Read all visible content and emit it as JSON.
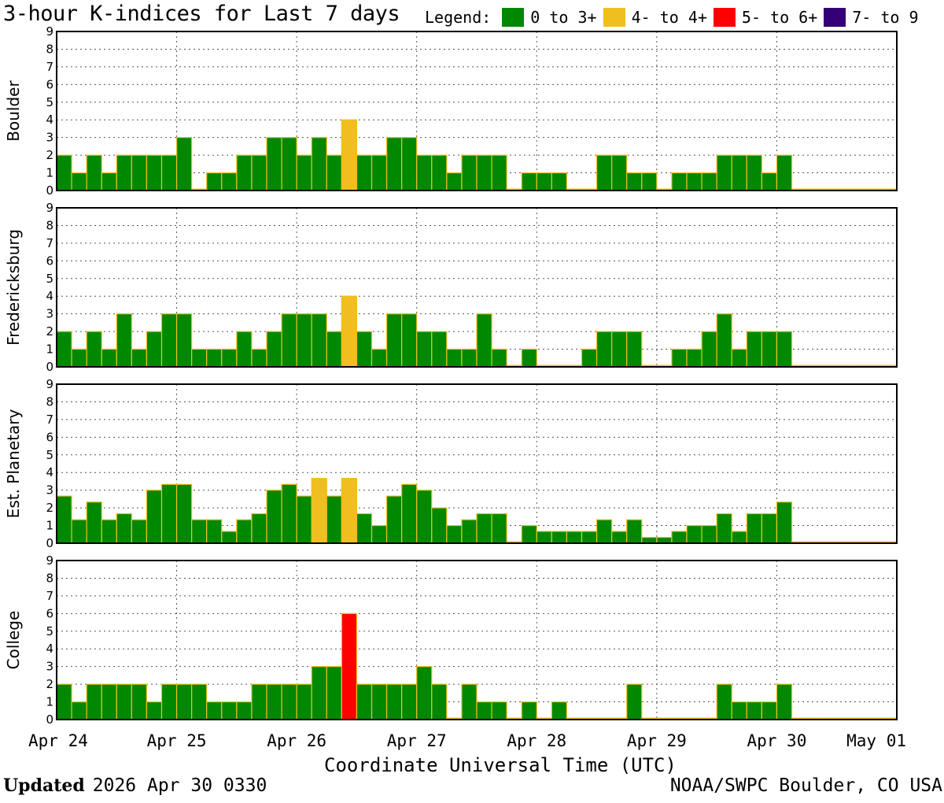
{
  "title": "3-hour K-indices for Last 7 days",
  "legend": {
    "label": "Legend:",
    "items": [
      {
        "label": "0 to 3+",
        "color": "#008800"
      },
      {
        "label": "4- to 4+",
        "color": "#f0be1e"
      },
      {
        "label": "5- to 6+",
        "color": "#ff0000"
      },
      {
        "label": "7- to 9",
        "color": "#330077"
      }
    ]
  },
  "footer": {
    "updated_label": "Updated",
    "updated_value": "2026 Apr 30 0330",
    "source": "NOAA/SWPC Boulder, CO USA"
  },
  "chart_data": {
    "type": "bar",
    "xlabel": "Coordinate Universal Time (UTC)",
    "x_ticks": [
      "Apr 24",
      "Apr 25",
      "Apr 26",
      "Apr 27",
      "Apr 28",
      "Apr 29",
      "Apr 30",
      "May 01"
    ],
    "ylim": [
      0,
      9
    ],
    "y_ticks": [
      0,
      1,
      2,
      3,
      4,
      5,
      6,
      7,
      8,
      9
    ],
    "grid": true,
    "legend_position": "top-right",
    "panels": [
      {
        "name": "Boulder",
        "values": [
          2,
          1,
          2,
          1,
          2,
          2,
          2,
          2,
          3,
          0,
          1,
          1,
          2,
          2,
          3,
          3,
          2,
          3,
          2,
          4,
          2,
          2,
          3,
          3,
          2,
          2,
          1,
          2,
          2,
          2,
          0,
          1,
          1,
          1,
          0,
          0,
          2,
          2,
          1,
          1,
          0,
          1,
          1,
          1,
          2,
          2,
          2,
          1,
          2,
          0,
          0,
          0,
          0,
          0,
          0,
          0
        ]
      },
      {
        "name": "Fredericksburg",
        "values": [
          2,
          1,
          2,
          1,
          3,
          1,
          2,
          3,
          3,
          1,
          1,
          1,
          2,
          1,
          2,
          3,
          3,
          3,
          2,
          4,
          2,
          1,
          3,
          3,
          2,
          2,
          1,
          1,
          3,
          1,
          0,
          1,
          0,
          0,
          0,
          1,
          2,
          2,
          2,
          0,
          0,
          1,
          1,
          2,
          3,
          1,
          2,
          2,
          2,
          0,
          0,
          0,
          0,
          0,
          0,
          0
        ]
      },
      {
        "name": "Est. Planetary",
        "values": [
          2.67,
          1.33,
          2.33,
          1.33,
          1.67,
          1.33,
          3,
          3.33,
          3.33,
          1.33,
          1.33,
          0.67,
          1.33,
          1.67,
          3,
          3.33,
          2.67,
          3.67,
          2.67,
          3.67,
          1.67,
          1,
          2.67,
          3.33,
          3,
          2,
          1,
          1.33,
          1.67,
          1.67,
          0,
          1,
          0.67,
          0.67,
          0.67,
          0.67,
          1.33,
          0.67,
          1.33,
          0.33,
          0.33,
          0.67,
          1,
          1,
          1.67,
          0.67,
          1.67,
          1.67,
          2.33,
          0,
          0,
          0,
          0,
          0,
          0,
          0
        ]
      },
      {
        "name": "College",
        "values": [
          2,
          1,
          2,
          2,
          2,
          2,
          1,
          2,
          2,
          2,
          1,
          1,
          1,
          2,
          2,
          2,
          2,
          3,
          3,
          6,
          2,
          2,
          2,
          2,
          3,
          2,
          0,
          2,
          1,
          1,
          0,
          1,
          0,
          1,
          0,
          0,
          0,
          0,
          2,
          0,
          0,
          0,
          0,
          0,
          2,
          1,
          1,
          1,
          2,
          0,
          0,
          0,
          0,
          0,
          0,
          0
        ]
      }
    ]
  }
}
